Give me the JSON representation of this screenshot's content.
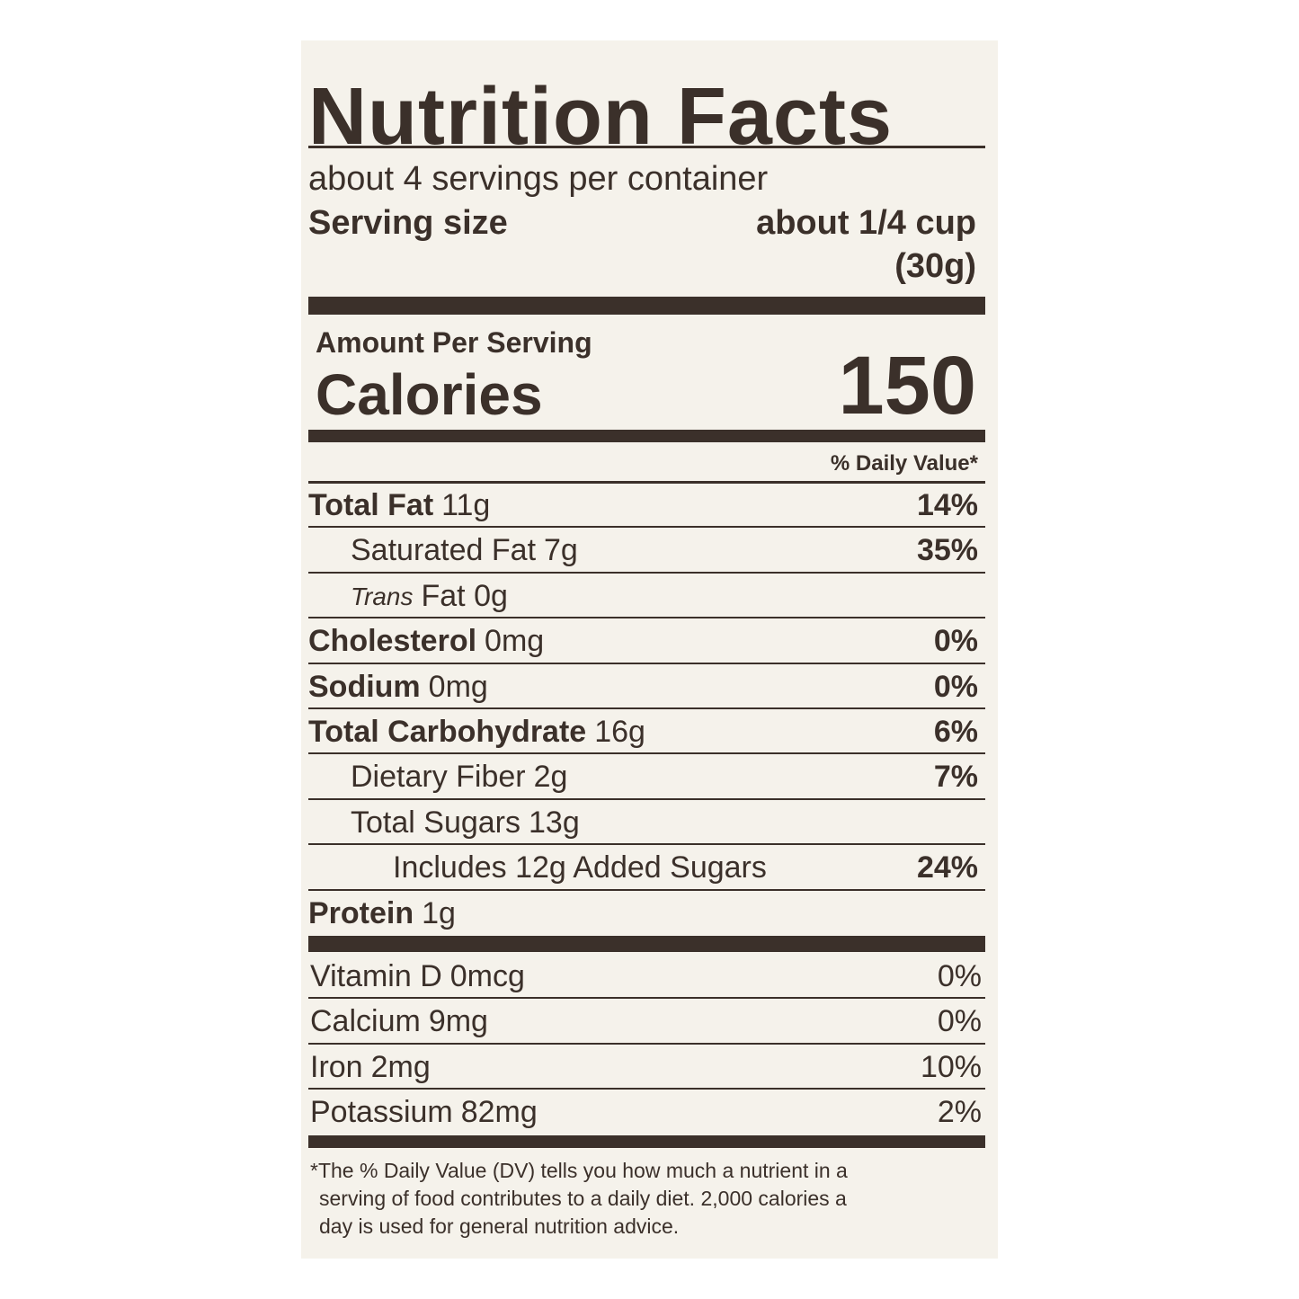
{
  "header": {
    "title": "Nutrition Facts",
    "servings": "about 4 servings per container",
    "serving_size_label": "Serving size",
    "serving_size_value": "about 1/4 cup",
    "serving_size_weight": "(30g)"
  },
  "calories": {
    "amount_label": "Amount Per Serving",
    "label": "Calories",
    "value": 150
  },
  "daily_value_header": "% Daily Value*",
  "nutrients": [
    {
      "name": "Total Fat",
      "amount": "11g",
      "dv": "14%",
      "bold": true,
      "indent": 0
    },
    {
      "name": "Saturated Fat",
      "amount": "7g",
      "dv": "35%",
      "bold": false,
      "indent": 1
    },
    {
      "name": "Trans",
      "amount": "Fat 0g",
      "bold": false,
      "italic": true,
      "indent": 1
    },
    {
      "name": "Cholesterol",
      "amount": "0mg",
      "dv": "0%",
      "bold": true,
      "indent": 0
    },
    {
      "name": "Sodium",
      "amount": "0mg",
      "dv": "0%",
      "bold": true,
      "indent": 0
    },
    {
      "name": "Total Carbohydrate",
      "amount": "16g",
      "dv": "6%",
      "bold": true,
      "indent": 0
    },
    {
      "name": "Dietary Fiber",
      "amount": "2g",
      "dv": "7%",
      "bold": false,
      "indent": 1
    },
    {
      "name": "Total Sugars",
      "amount": "13g",
      "bold": false,
      "indent": 1
    },
    {
      "name": "Includes 12g Added Sugars",
      "dv": "24%",
      "bold": false,
      "indent": 2
    },
    {
      "name": "Protein",
      "amount": "1g",
      "bold": true,
      "indent": 0
    }
  ],
  "vitamins": [
    {
      "name": "Vitamin D",
      "amount": "0mcg",
      "dv": "0%"
    },
    {
      "name": "Calcium",
      "amount": "9mg",
      "dv": "0%"
    },
    {
      "name": "Iron",
      "amount": "2mg",
      "dv": "10%"
    },
    {
      "name": "Potassium",
      "amount": "82mg",
      "dv": "2%"
    }
  ],
  "footnote": [
    "*The % Daily Value (DV) tells you how much a nutrient in a",
    "serving of food contributes to a daily diet. 2,000 calories a",
    "day is used for general nutrition advice."
  ]
}
